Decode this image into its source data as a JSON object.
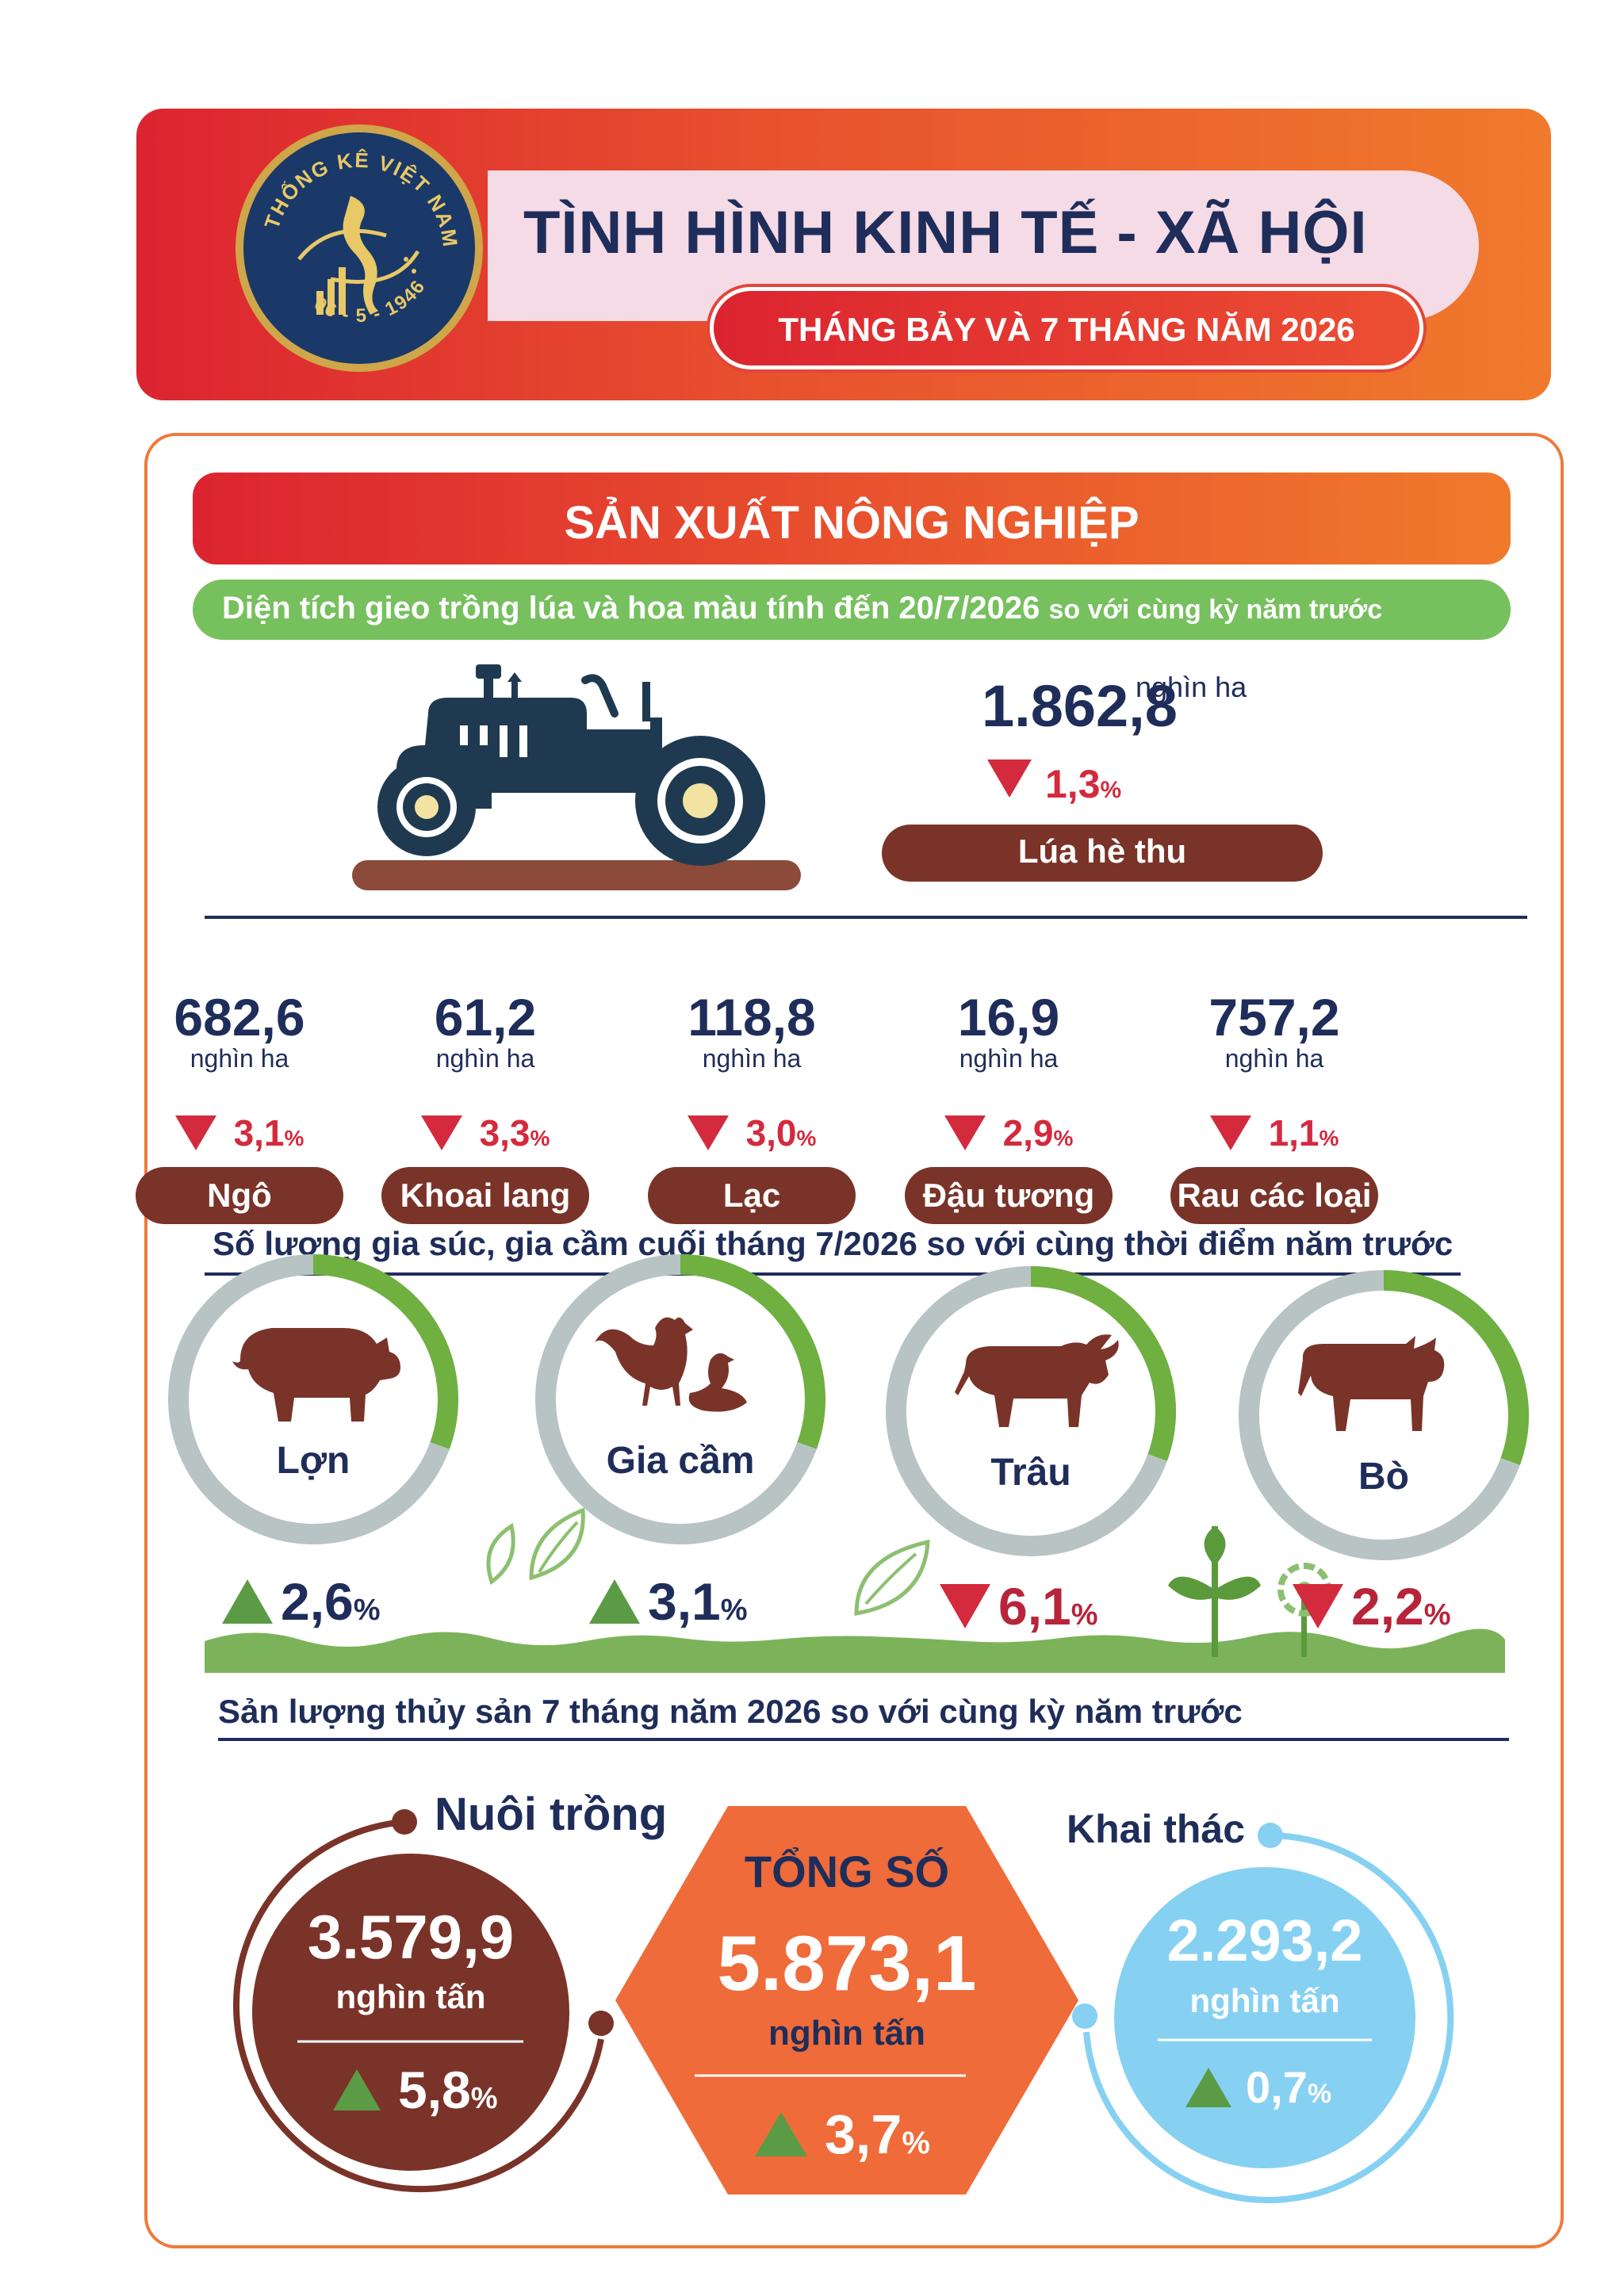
{
  "header": {
    "logo_text_top": "THỐNG KÊ VIỆT NAM",
    "logo_date": "06 - 5 - 1946",
    "title": "TÌNH HÌNH KINH TẾ - XÃ HỘI",
    "subtitle": "THÁNG BẢY VÀ 7 THÁNG NĂM 2026"
  },
  "section": {
    "title": "SẢN XUẤT NÔNG NGHIỆP",
    "area_caption_main": "Diện tích gieo trồng lúa và hoa màu tính đến 20/7/2026",
    "area_caption_tail": "so với cùng kỳ năm trước"
  },
  "rice": {
    "value": "1.862,8",
    "unit": "nghìn ha",
    "change": "1,3",
    "change_unit": "%",
    "direction": "down",
    "label": "Lúa hè thu"
  },
  "crops": [
    {
      "value": "682,6",
      "unit": "nghìn ha",
      "change": "3,1",
      "change_unit": "%",
      "direction": "down",
      "label": "Ngô"
    },
    {
      "value": "61,2",
      "unit": "nghìn ha",
      "change": "3,3",
      "change_unit": "%",
      "direction": "down",
      "label": "Khoai lang"
    },
    {
      "value": "118,8",
      "unit": "nghìn ha",
      "change": "3,0",
      "change_unit": "%",
      "direction": "down",
      "label": "Lạc"
    },
    {
      "value": "16,9",
      "unit": "nghìn ha",
      "change": "2,9",
      "change_unit": "%",
      "direction": "down",
      "label": "Đậu tương"
    },
    {
      "value": "757,2",
      "unit": "nghìn ha",
      "change": "1,1",
      "change_unit": "%",
      "direction": "down",
      "label": "Rau các loại"
    }
  ],
  "livestock": {
    "caption": "Số lượng gia súc, gia cầm cuối tháng 7/2026 so với cùng thời điểm năm trước",
    "items": [
      {
        "label": "Lợn",
        "change": "2,6",
        "change_unit": "%",
        "direction": "up",
        "icon": "pig-icon"
      },
      {
        "label": "Gia cầm",
        "change": "3,1",
        "change_unit": "%",
        "direction": "up",
        "icon": "poultry-icon"
      },
      {
        "label": "Trâu",
        "change": "6,1",
        "change_unit": "%",
        "direction": "down",
        "icon": "buffalo-icon"
      },
      {
        "label": "Bò",
        "change": "2,2",
        "change_unit": "%",
        "direction": "down",
        "icon": "cow-icon"
      }
    ]
  },
  "fisheries": {
    "caption": "Sản lượng thủy sản 7 tháng năm 2026 so với cùng kỳ năm trước",
    "aquaculture": {
      "label": "Nuôi trồng",
      "value": "3.579,9",
      "unit": "nghìn tấn",
      "change": "5,8",
      "change_unit": "%",
      "direction": "up"
    },
    "total": {
      "label": "TỔNG SỐ",
      "value": "5.873,1",
      "unit": "nghìn tấn",
      "change": "3,7",
      "change_unit": "%",
      "direction": "up"
    },
    "capture": {
      "label": "Khai thác",
      "value": "2.293,2",
      "unit": "nghìn tấn",
      "change": "0,7",
      "change_unit": "%",
      "direction": "up"
    }
  },
  "colors": {
    "navy": "#1f2d5a",
    "red_down": "#d42a3d",
    "green_up": "#4f9a3a",
    "brown": "#7a3328",
    "orange": "#ef6b3a",
    "light_blue": "#86d1f2",
    "grey_ring": "#b8c4c4",
    "green_ring": "#6fb041"
  }
}
